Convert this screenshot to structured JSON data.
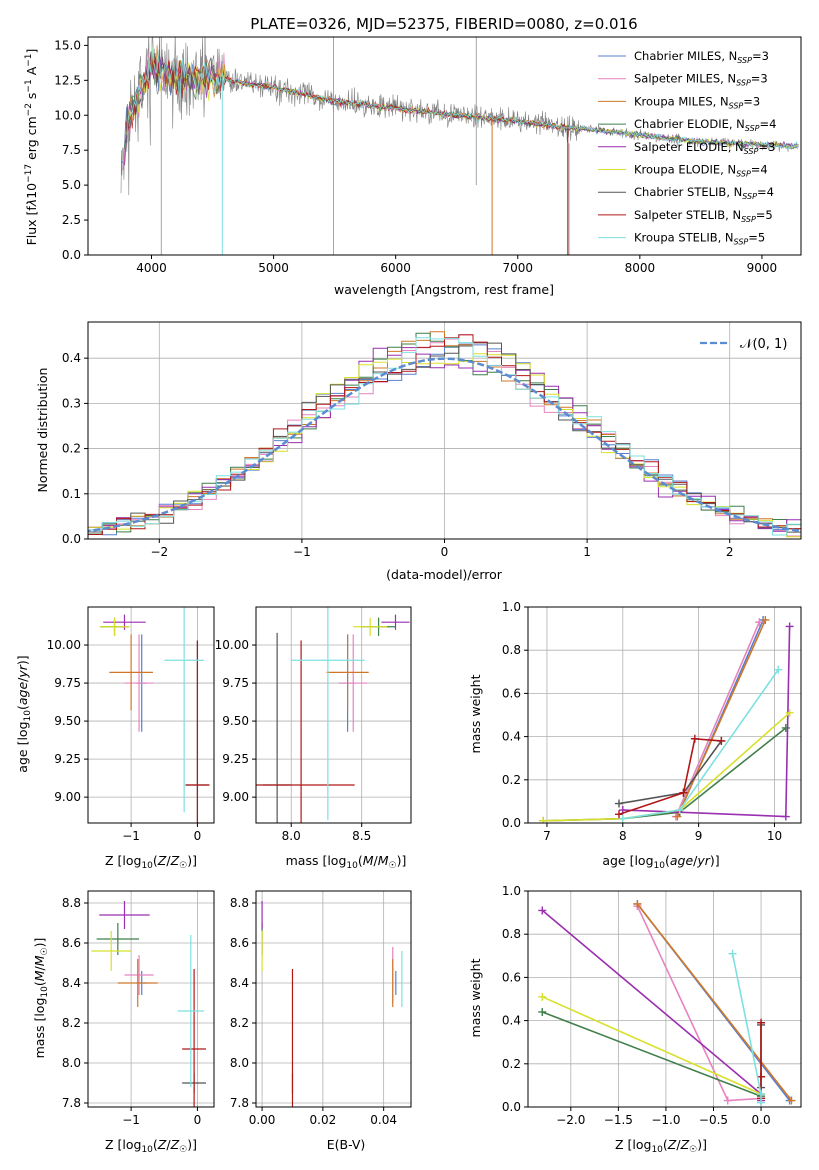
{
  "figure": {
    "background": "#ffffff"
  },
  "series_names": [
    "Chabrier MILES",
    "Salpeter MILES",
    "Kroupa MILES",
    "Chabrier ELODIE",
    "Salpeter ELODIE",
    "Kroupa ELODIE",
    "Chabrier STELIB",
    "Salpeter STELIB",
    "Kroupa STELIB"
  ],
  "series_colors": [
    "#5a7fd0",
    "#e684c0",
    "#d07828",
    "#3f7f4a",
    "#9a2fb0",
    "#d8e02a",
    "#555555",
    "#b01818",
    "#7ee0e0"
  ],
  "chart_data": [
    {
      "id": "spectrum",
      "type": "line",
      "title": "PLATE=0326, MJD=52375, FIBERID=0080, z=0.016",
      "xlabel": "wavelength [Angstrom, rest frame]",
      "ylabel": "Flux [f_λ10^-17 erg cm^-2 s^-1 A^-1]",
      "xlim": [
        3480,
        9320
      ],
      "ylim": [
        0,
        15.6
      ],
      "xticks": [
        4000,
        5000,
        6000,
        7000,
        8000,
        9000
      ],
      "yticks": [
        0.0,
        2.5,
        5.0,
        7.5,
        10.0,
        12.5,
        15.0
      ],
      "legend": "upper right",
      "legend_entries": [
        {
          "name": "Chabrier MILES",
          "nssp": "3"
        },
        {
          "name": "Salpeter MILES",
          "nssp": "3"
        },
        {
          "name": "Kroupa MILES",
          "nssp": "3"
        },
        {
          "name": "Chabrier ELODIE",
          "nssp": "4"
        },
        {
          "name": "Salpeter ELODIE",
          "nssp": "3"
        },
        {
          "name": "Kroupa ELODIE",
          "nssp": "4"
        },
        {
          "name": "Chabrier STELIB",
          "nssp": "4"
        },
        {
          "name": "Salpeter STELIB",
          "nssp": "5"
        },
        {
          "name": "Kroupa STELIB",
          "nssp": "5"
        }
      ],
      "data_envelope": {
        "x": [
          3750,
          3800,
          3900,
          4000,
          4100,
          4300,
          4500,
          4800,
          5000,
          5500,
          6000,
          6500,
          7000,
          7400,
          7600,
          8000,
          8500,
          9000,
          9300
        ],
        "y": [
          5.0,
          9.5,
          11.5,
          13.5,
          13.0,
          12.5,
          12.8,
          12.2,
          12.0,
          11.0,
          10.5,
          10.0,
          9.6,
          9.1,
          9.0,
          8.6,
          8.1,
          7.9,
          7.8
        ]
      }
    },
    {
      "id": "residuals",
      "type": "histogram",
      "xlabel": "(data-model)/error",
      "ylabel": "Normed distribution",
      "xlim": [
        -2.5,
        2.5
      ],
      "ylim": [
        0,
        0.48
      ],
      "xticks": [
        -2,
        -1,
        0,
        1,
        2
      ],
      "yticks": [
        0.0,
        0.1,
        0.2,
        0.3,
        0.4
      ],
      "legend": "upper right",
      "legend_label": "𝒩(0, 1)",
      "reference": "normal(0,1)",
      "reference_color": "#5b8bd0",
      "bin_width": 0.1
    },
    {
      "id": "z-age",
      "type": "errorbar",
      "xlabel": "Z [log₁₀(Z/Z☉)]",
      "ylabel": "age  [log₁₀(age/yr)]",
      "xlim": [
        -1.65,
        0.25
      ],
      "ylim": [
        8.83,
        10.25
      ],
      "xticks": [
        -1,
        0
      ],
      "yticks": [
        9.0,
        9.25,
        9.5,
        9.75,
        10.0
      ],
      "points": [
        {
          "s": 0,
          "x": -0.84,
          "y": 9.75,
          "xerr": 0.08,
          "yerr": 0.32
        },
        {
          "s": 1,
          "x": -0.88,
          "y": 9.75,
          "xerr": 0.22,
          "yerr": 0.32
        },
        {
          "s": 2,
          "x": -1.0,
          "y": 9.82,
          "xerr": 0.33,
          "yerr": 0.25
        },
        {
          "s": 3,
          "x": -1.25,
          "y": 10.12,
          "xerr": 0.22,
          "yerr": 0.06
        },
        {
          "s": 4,
          "x": -1.1,
          "y": 10.15,
          "xerr": 0.32,
          "yerr": 0.05
        },
        {
          "s": 5,
          "x": -1.25,
          "y": 10.12,
          "xerr": 0.22,
          "yerr": 0.06
        },
        {
          "s": 6,
          "x": 0.0,
          "y": 9.08,
          "xerr": 0.18,
          "yerr": 0.95
        },
        {
          "s": 7,
          "x": 0.0,
          "y": 9.08,
          "xerr": 0.18,
          "yerr": 0.95
        },
        {
          "s": 8,
          "x": -0.2,
          "y": 9.9,
          "xerr": 0.3,
          "yerr": 1.0
        }
      ]
    },
    {
      "id": "mass-age",
      "type": "errorbar",
      "xlabel": "mass [log₁₀(M/M☉)]",
      "ylabel": "",
      "xlim": [
        7.75,
        8.85
      ],
      "ylim": [
        8.83,
        10.25
      ],
      "xticks": [
        8.0,
        8.5
      ],
      "yticks": [
        9.0,
        9.25,
        9.5,
        9.75,
        10.0
      ],
      "points": [
        {
          "s": 0,
          "x": 8.4,
          "y": 9.75,
          "xerr": 0.06,
          "yerr": 0.32
        },
        {
          "s": 1,
          "x": 8.44,
          "y": 9.75,
          "xerr": 0.1,
          "yerr": 0.32
        },
        {
          "s": 2,
          "x": 8.4,
          "y": 9.82,
          "xerr": 0.15,
          "yerr": 0.25
        },
        {
          "s": 3,
          "x": 8.62,
          "y": 10.12,
          "xerr": 0.12,
          "yerr": 0.06
        },
        {
          "s": 4,
          "x": 8.74,
          "y": 10.15,
          "xerr": 0.1,
          "yerr": 0.05
        },
        {
          "s": 5,
          "x": 8.56,
          "y": 10.12,
          "xerr": 0.12,
          "yerr": 0.06
        },
        {
          "s": 6,
          "x": 7.9,
          "y": 9.08,
          "xerr": 0.1,
          "yerr": 1.0
        },
        {
          "s": 7,
          "x": 8.07,
          "y": 9.08,
          "xerr": 0.38,
          "yerr": 0.95
        },
        {
          "s": 8,
          "x": 8.26,
          "y": 9.9,
          "xerr": 0.26,
          "yerr": 1.05
        }
      ]
    },
    {
      "id": "age-weight",
      "type": "line",
      "xlabel": "age  [log₁₀(age/yr)]",
      "ylabel": "mass weight",
      "xlim": [
        6.75,
        10.35
      ],
      "ylim": [
        0,
        1
      ],
      "xticks": [
        7,
        8,
        9,
        10
      ],
      "yticks": [
        0.0,
        0.2,
        0.4,
        0.6,
        0.8,
        1.0
      ],
      "series": [
        {
          "s": 0,
          "x": [
            8.75,
            9.85
          ],
          "y": [
            0.05,
            0.94
          ]
        },
        {
          "s": 1,
          "x": [
            8.7,
            9.8
          ],
          "y": [
            0.03,
            0.93
          ]
        },
        {
          "s": 2,
          "x": [
            8.72,
            9.88
          ],
          "y": [
            0.03,
            0.94
          ]
        },
        {
          "s": 3,
          "x": [
            6.95,
            8.0,
            8.75,
            10.15
          ],
          "y": [
            0.01,
            0.02,
            0.05,
            0.44
          ]
        },
        {
          "s": 4,
          "x": [
            8.0,
            10.15,
            10.2
          ],
          "y": [
            0.06,
            0.03,
            0.91
          ]
        },
        {
          "s": 5,
          "x": [
            6.95,
            8.0,
            8.75,
            10.2
          ],
          "y": [
            0.01,
            0.02,
            0.06,
            0.51
          ]
        },
        {
          "s": 6,
          "x": [
            7.95,
            8.8,
            9.3
          ],
          "y": [
            0.09,
            0.14,
            0.38
          ]
        },
        {
          "s": 7,
          "x": [
            7.95,
            8.8,
            8.95,
            9.3
          ],
          "y": [
            0.04,
            0.14,
            0.39,
            0.38
          ]
        },
        {
          "s": 8,
          "x": [
            8.0,
            8.75,
            10.05
          ],
          "y": [
            0.02,
            0.06,
            0.71
          ]
        }
      ]
    },
    {
      "id": "z-mass",
      "type": "errorbar",
      "xlabel": "Z [log₁₀(Z/Z☉)]",
      "ylabel": "mass [log₁₀(M/M☉)]",
      "xlim": [
        -1.65,
        0.25
      ],
      "ylim": [
        7.78,
        8.86
      ],
      "xticks": [
        -1,
        0
      ],
      "yticks": [
        7.8,
        8.0,
        8.2,
        8.4,
        8.6,
        8.8
      ],
      "points": [
        {
          "s": 0,
          "x": -0.84,
          "y": 8.4,
          "xerr": 0.08,
          "yerr": 0.06
        },
        {
          "s": 1,
          "x": -0.88,
          "y": 8.44,
          "xerr": 0.22,
          "yerr": 0.1
        },
        {
          "s": 2,
          "x": -0.9,
          "y": 8.4,
          "xerr": 0.3,
          "yerr": 0.12
        },
        {
          "s": 3,
          "x": -1.2,
          "y": 8.62,
          "xerr": 0.32,
          "yerr": 0.08
        },
        {
          "s": 4,
          "x": -1.1,
          "y": 8.74,
          "xerr": 0.38,
          "yerr": 0.07
        },
        {
          "s": 5,
          "x": -1.3,
          "y": 8.56,
          "xerr": 0.3,
          "yerr": 0.1
        },
        {
          "s": 6,
          "x": -0.05,
          "y": 7.9,
          "xerr": 0.18,
          "yerr": 0.05
        },
        {
          "s": 7,
          "x": -0.05,
          "y": 8.07,
          "xerr": 0.18,
          "yerr": 0.4
        },
        {
          "s": 8,
          "x": -0.1,
          "y": 8.26,
          "xerr": 0.2,
          "yerr": 0.38
        }
      ]
    },
    {
      "id": "ebv-mass",
      "type": "errorbar",
      "xlabel": "E(B-V)",
      "ylabel": "",
      "xlim": [
        -0.002,
        0.049
      ],
      "ylim": [
        7.78,
        8.86
      ],
      "xticks": [
        0.0,
        0.02,
        0.04
      ],
      "yticks": [
        7.8,
        8.0,
        8.2,
        8.4,
        8.6,
        8.8
      ],
      "points": [
        {
          "s": 0,
          "x": 0.044,
          "y": 8.4,
          "xerr": 0.0,
          "yerr": 0.06
        },
        {
          "s": 1,
          "x": 0.043,
          "y": 8.44,
          "xerr": 0.0,
          "yerr": 0.14
        },
        {
          "s": 2,
          "x": 0.043,
          "y": 8.4,
          "xerr": 0.0,
          "yerr": 0.12
        },
        {
          "s": 3,
          "x": 0.0,
          "y": 8.62,
          "xerr": 0.0,
          "yerr": 0.08
        },
        {
          "s": 4,
          "x": 0.0,
          "y": 8.74,
          "xerr": 0.0,
          "yerr": 0.07
        },
        {
          "s": 5,
          "x": 0.0,
          "y": 8.56,
          "xerr": 0.0,
          "yerr": 0.1
        },
        {
          "s": 6,
          "x": 0.01,
          "y": 7.9,
          "xerr": 0.0,
          "yerr": 0.05
        },
        {
          "s": 7,
          "x": 0.01,
          "y": 8.07,
          "xerr": 0.0,
          "yerr": 0.4
        },
        {
          "s": 8,
          "x": 0.046,
          "y": 8.42,
          "xerr": 0.0,
          "yerr": 0.14
        }
      ]
    },
    {
      "id": "z-weight",
      "type": "line",
      "xlabel": "Z [log₁₀(Z/Z☉)]",
      "ylabel": "mass weight",
      "xlim": [
        -2.45,
        0.42
      ],
      "ylim": [
        0,
        1
      ],
      "xticks": [
        -2.0,
        -1.5,
        -1.0,
        -0.5,
        0.0
      ],
      "yticks": [
        0.0,
        0.2,
        0.4,
        0.6,
        0.8,
        1.0
      ],
      "series": [
        {
          "s": 0,
          "x": [
            -1.3,
            0.3
          ],
          "y": [
            0.94,
            0.03
          ]
        },
        {
          "s": 1,
          "x": [
            -1.3,
            -0.35,
            0.0
          ],
          "y": [
            0.93,
            0.03,
            0.04
          ]
        },
        {
          "s": 2,
          "x": [
            -1.3,
            0.32
          ],
          "y": [
            0.94,
            0.03
          ]
        },
        {
          "s": 3,
          "x": [
            -2.3,
            0.0
          ],
          "y": [
            0.44,
            0.05
          ]
        },
        {
          "s": 4,
          "x": [
            -2.3,
            0.0,
            0.0
          ],
          "y": [
            0.91,
            0.06,
            0.03
          ]
        },
        {
          "s": 5,
          "x": [
            -2.3,
            0.0
          ],
          "y": [
            0.51,
            0.06
          ]
        },
        {
          "s": 6,
          "x": [
            0.0,
            0.0,
            0.0
          ],
          "y": [
            0.09,
            0.14,
            0.38
          ]
        },
        {
          "s": 7,
          "x": [
            0.0,
            0.0,
            0.0
          ],
          "y": [
            0.04,
            0.14,
            0.39
          ]
        },
        {
          "s": 8,
          "x": [
            -0.3,
            0.0,
            0.0
          ],
          "y": [
            0.71,
            0.06,
            0.02
          ]
        }
      ]
    }
  ]
}
